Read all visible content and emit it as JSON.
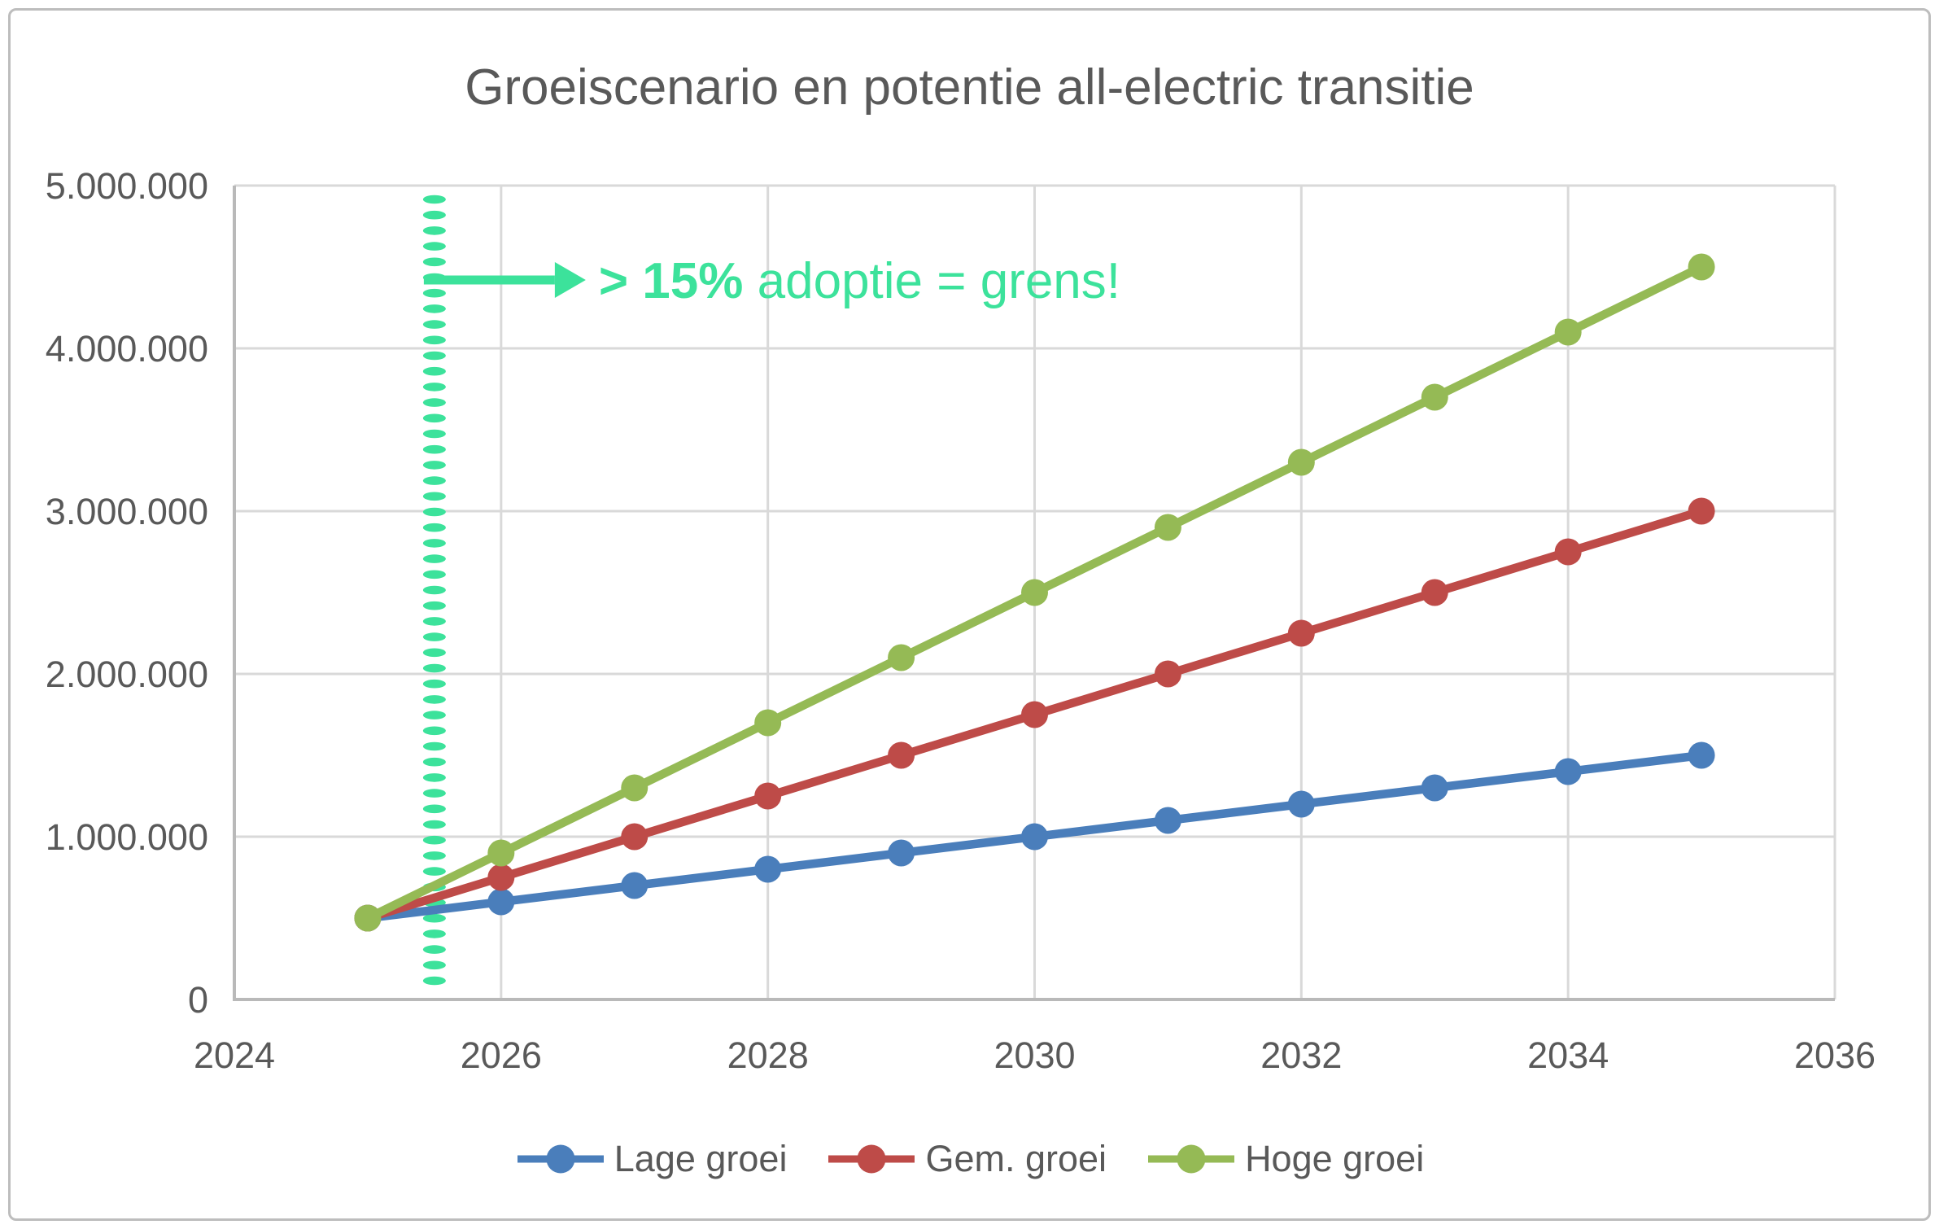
{
  "chart_data": {
    "type": "line",
    "title": "Groeiscenario en potentie all-electric transitie",
    "xlabel": "",
    "ylabel": "",
    "x": [
      2025,
      2026,
      2027,
      2028,
      2029,
      2030,
      2031,
      2032,
      2033,
      2034,
      2035
    ],
    "series": [
      {
        "name": "Lage groei",
        "color": "#4A7EBB",
        "values": [
          500000,
          600000,
          700000,
          800000,
          900000,
          1000000,
          1100000,
          1200000,
          1300000,
          1400000,
          1500000
        ]
      },
      {
        "name": "Gem. groei",
        "color": "#BE4B48",
        "values": [
          500000,
          750000,
          1000000,
          1250000,
          1500000,
          1750000,
          2000000,
          2250000,
          2500000,
          2750000,
          3000000
        ]
      },
      {
        "name": "Hoge groei",
        "color": "#95BA55",
        "values": [
          500000,
          900000,
          1300000,
          1700000,
          2100000,
          2500000,
          2900000,
          3300000,
          3700000,
          4100000,
          4500000
        ]
      }
    ],
    "xlim": [
      2024,
      2036
    ],
    "ylim": [
      0,
      5000000
    ],
    "x_ticks": [
      2024,
      2026,
      2028,
      2030,
      2032,
      2034,
      2036
    ],
    "y_ticks": [
      {
        "value": 0,
        "label": "0"
      },
      {
        "value": 1000000,
        "label": "1.000.000"
      },
      {
        "value": 2000000,
        "label": "2.000.000"
      },
      {
        "value": 3000000,
        "label": "3.000.000"
      },
      {
        "value": 4000000,
        "label": "4.000.000"
      },
      {
        "value": 5000000,
        "label": "5.000.000"
      }
    ],
    "grid": true,
    "legend_position": "bottom",
    "annotation": {
      "full_text": "> 15% adoptie = grens!",
      "bold_text": "> 15%",
      "rest_text": " adoptie = grens!",
      "color": "#3CE29B",
      "threshold_line_x": 2025.5,
      "threshold_line_style": "dashed-vertical",
      "arrow_y_value": 4420000
    }
  },
  "colors": {
    "title_text": "#595959",
    "tick_text": "#595959",
    "legend_text": "#595959",
    "gridline": "#D9D9D9",
    "axis_line": "#B9B9B9",
    "annotation_accent": "#3CE29B",
    "background": "#FFFFFF",
    "frame_border": "#BDBDBD"
  }
}
